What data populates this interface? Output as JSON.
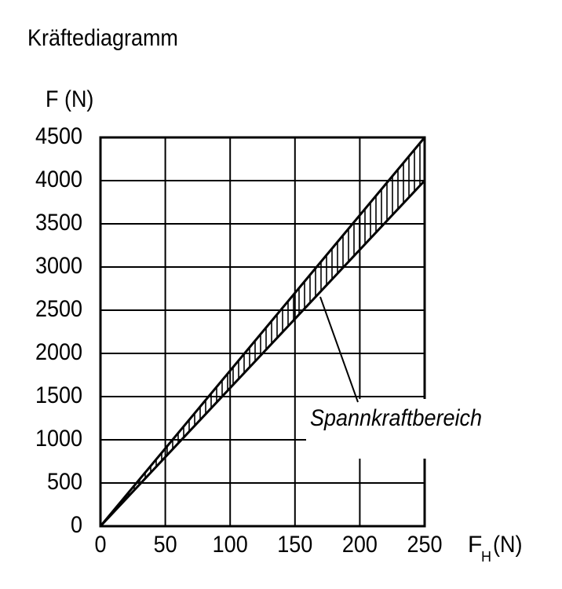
{
  "chart_data": {
    "type": "line",
    "title": "Kräftediagramm",
    "ylabel": "F (N)",
    "xlabel": "F",
    "xlabel_subscript": "H",
    "xlabel_unit": "(N)",
    "annotation": "Spannkraftbereich",
    "x": [
      0,
      250
    ],
    "series": [
      {
        "color": "#000000",
        "values": [
          0,
          4500
        ]
      },
      {
        "color": "#000000",
        "values": [
          0,
          4000
        ]
      }
    ],
    "xlim": [
      0,
      250
    ],
    "xticks": [
      0,
      50,
      100,
      150,
      200,
      250
    ],
    "ylim": [
      0,
      4500
    ],
    "yticks": [
      0,
      500,
      1000,
      1500,
      2000,
      2500,
      3000,
      3500,
      4000,
      4500
    ],
    "grid": true,
    "fill_between": true
  }
}
